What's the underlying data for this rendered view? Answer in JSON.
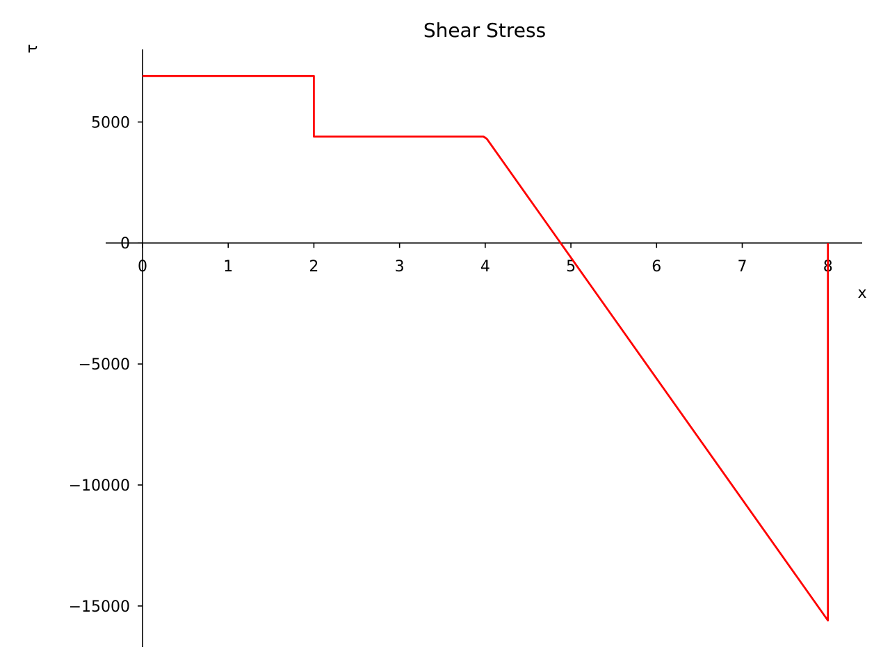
{
  "chart_data": {
    "type": "line",
    "title": "Shear Stress",
    "xlabel": "x",
    "ylabel": "τ",
    "xlim": [
      0,
      8.4
    ],
    "ylim": [
      -16700,
      8000
    ],
    "grid": false,
    "legend": "none",
    "x_ticks": [
      0,
      1,
      2,
      3,
      4,
      5,
      6,
      7,
      8
    ],
    "x_tick_labels": [
      "0",
      "1",
      "2",
      "3",
      "4",
      "5",
      "6",
      "7",
      "8"
    ],
    "y_ticks": [
      5000,
      0,
      -5000,
      -10000,
      -15000
    ],
    "y_tick_labels": [
      "5000",
      "0",
      "−5000",
      "−10000",
      "−15000"
    ],
    "series": [
      {
        "color": "#ff0000",
        "x": [
          0,
          2,
          2,
          3.98,
          4.02,
          8,
          8
        ],
        "y": [
          6900,
          6900,
          4400,
          4400,
          4300,
          -15600,
          0
        ]
      }
    ]
  }
}
